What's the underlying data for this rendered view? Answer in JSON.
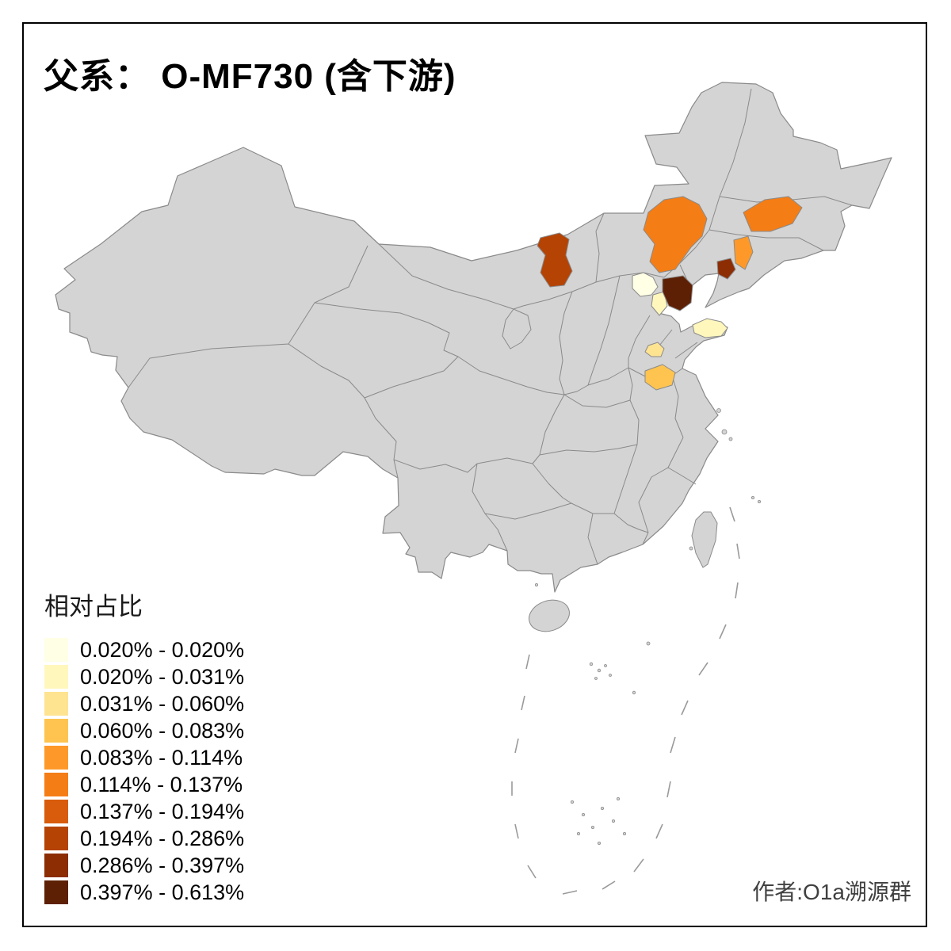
{
  "title": "父系： O-MF730 (含下游)",
  "legend": {
    "title": "相对占比",
    "items": [
      {
        "label": "0.020% - 0.020%",
        "color": "#FFFFE5"
      },
      {
        "label": "0.020% - 0.031%",
        "color": "#FFF7BC"
      },
      {
        "label": "0.031% - 0.060%",
        "color": "#FEE391"
      },
      {
        "label": "0.060% - 0.083%",
        "color": "#FEC44F"
      },
      {
        "label": "0.083% - 0.114%",
        "color": "#FE9929"
      },
      {
        "label": "0.114% - 0.137%",
        "color": "#F57D15"
      },
      {
        "label": "0.137% - 0.194%",
        "color": "#D85C0B"
      },
      {
        "label": "0.194% - 0.286%",
        "color": "#B54304"
      },
      {
        "label": "0.286% - 0.397%",
        "color": "#8C2D04"
      },
      {
        "label": "0.397% - 0.613%",
        "color": "#5E2004"
      }
    ]
  },
  "attribution": "作者:O1a溯源群",
  "map": {
    "base_fill": "#D4D4D4",
    "border_color": "#8A8A8A",
    "sea_color": "#FFFFFF",
    "dash_color": "#9A9A9A",
    "frame_color": "#000000"
  }
}
